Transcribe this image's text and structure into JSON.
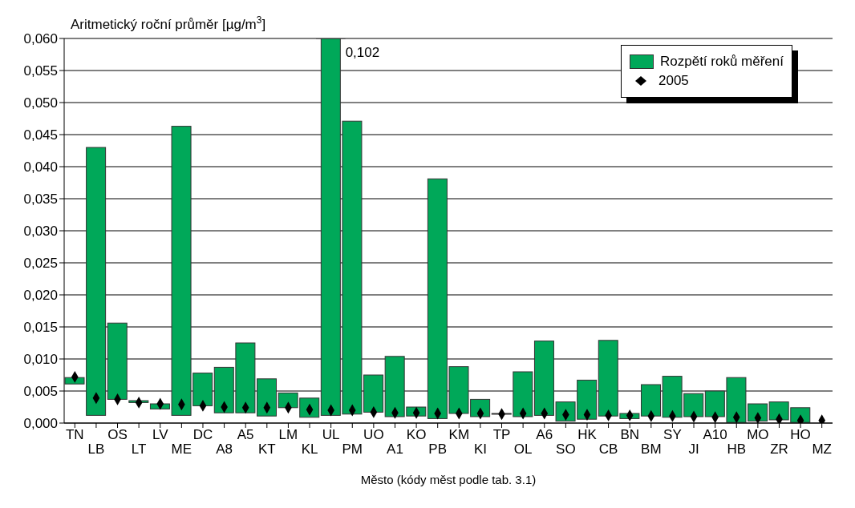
{
  "chart_data": {
    "type": "bar",
    "ylabel": "Aritmetický roční průměr [µg/m$^{3}$]",
    "xlabel": "Město (kódy měst podle tab. 3.1)",
    "categories": [
      "TN",
      "LB",
      "OS",
      "LT",
      "LV",
      "ME",
      "DC",
      "A8",
      "A5",
      "KT",
      "LM",
      "KL",
      "UL",
      "PM",
      "UO",
      "A1",
      "KO",
      "PB",
      "KM",
      "KI",
      "TP",
      "OL",
      "A6",
      "SO",
      "HK",
      "CB",
      "BN",
      "BM",
      "SY",
      "JI",
      "A10",
      "HB",
      "MO",
      "ZR",
      "HO",
      "MZ"
    ],
    "series": [
      {
        "name": "Rozpětí roků měření",
        "color": "#00a859",
        "base": [
          0.0061,
          0.0012,
          0.0037,
          0.0032,
          0.0022,
          0.0012,
          0.0027,
          0.0016,
          0.0016,
          0.0011,
          0.0024,
          0.0009,
          0.0012,
          0.0014,
          0.0017,
          0.001,
          0.0011,
          0.0007,
          0.0015,
          0.001,
          0.0014,
          0.001,
          0.0012,
          0.0003,
          0.0006,
          0.0011,
          0.0007,
          0.0011,
          0.0009,
          0.001,
          0.001,
          0.0001,
          0.0003,
          0.0005,
          0.0001,
          null
        ],
        "values": [
          0.001,
          0.0418,
          0.0119,
          0.0003,
          0.0008,
          0.0451,
          0.0051,
          0.0071,
          0.0109,
          0.0058,
          0.0023,
          0.003,
          0.0588,
          0.0457,
          0.0058,
          0.0094,
          0.0014,
          0.0374,
          0.0073,
          0.0027,
          0.0001,
          0.007,
          0.0116,
          0.003,
          0.0061,
          0.0118,
          0.0008,
          0.0049,
          0.0064,
          0.0036,
          0.004,
          0.007,
          0.0027,
          0.0028,
          0.0023,
          null
        ]
      },
      {
        "name": "2005",
        "type": "scatter",
        "color": "#000000",
        "marker": "diamond",
        "values": [
          0.0072,
          0.0039,
          0.0037,
          0.0032,
          0.003,
          0.0029,
          0.0027,
          0.0025,
          0.0024,
          0.0024,
          0.0024,
          0.0021,
          0.002,
          0.002,
          0.0017,
          0.0016,
          0.0016,
          0.0015,
          0.0015,
          0.0015,
          0.0014,
          0.0015,
          0.0015,
          0.0013,
          0.0013,
          0.0012,
          0.0012,
          0.0011,
          0.0011,
          0.001,
          0.0009,
          0.0009,
          0.0008,
          0.0006,
          0.0004,
          0.0004
        ]
      }
    ],
    "annotations": [
      "0,102"
    ],
    "ylim": [
      0,
      0.06
    ],
    "yticks": [
      {
        "value": 0,
        "label": "0,000"
      },
      {
        "value": 0.005,
        "label": "0,005"
      },
      {
        "value": 0.01,
        "label": "0,010"
      },
      {
        "value": 0.015,
        "label": "0,015"
      },
      {
        "value": 0.02,
        "label": "0,020"
      },
      {
        "value": 0.025,
        "label": "0,025"
      },
      {
        "value": 0.03,
        "label": "0,030"
      },
      {
        "value": 0.035,
        "label": "0,035"
      },
      {
        "value": 0.04,
        "label": "0,040"
      },
      {
        "value": 0.045,
        "label": "0,045"
      },
      {
        "value": 0.05,
        "label": "0,050"
      },
      {
        "value": 0.055,
        "label": "0,055"
      },
      {
        "value": 0.06,
        "label": "0,060"
      }
    ],
    "grid": "y",
    "legend": "top right"
  }
}
